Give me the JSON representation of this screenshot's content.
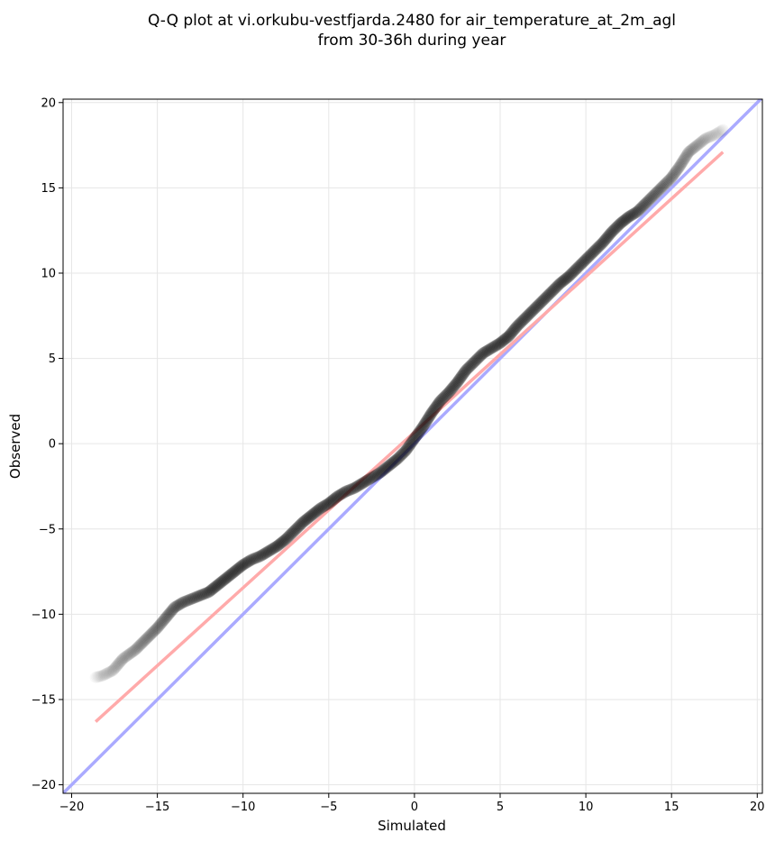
{
  "title_lines": [
    "Q-Q plot at vi.orkubu-vestfjarda.2480 for air_temperature_at_2m_agl",
    "from 30-36h during year"
  ],
  "chart_data": {
    "type": "scatter",
    "title": "Q-Q plot at vi.orkubu-vestfjarda.2480 for air_temperature_at_2m_agl from 30-36h during year",
    "xlabel": "Simulated",
    "ylabel": "Observed",
    "xlim": [
      -20.5,
      20.3
    ],
    "ylim": [
      -20.5,
      20.2
    ],
    "xticks": [
      -20,
      -15,
      -10,
      -5,
      0,
      5,
      10,
      15,
      20
    ],
    "yticks": [
      -20,
      -15,
      -10,
      -5,
      0,
      5,
      10,
      15,
      20
    ],
    "tick_labels": [
      "−20",
      "−15",
      "−10",
      "−5",
      "0",
      "5",
      "10",
      "15",
      "20"
    ],
    "grid": true,
    "identity_line": {
      "color": "#aaaaff",
      "from": [
        -20.5,
        -20.5
      ],
      "to": [
        20.3,
        20.3
      ]
    },
    "fit_line": {
      "color": "#ffaaaa",
      "from": [
        -18.6,
        -16.3
      ],
      "to": [
        18.0,
        17.1
      ]
    },
    "quantiles": {
      "x": [
        -18.6,
        -18.2,
        -17.6,
        -17.0,
        -16.3,
        -15.6,
        -15.0,
        -14.5,
        -14.0,
        -13.5,
        -13.0,
        -12.5,
        -12.0,
        -11.5,
        -11.0,
        -10.5,
        -10.0,
        -9.5,
        -9.0,
        -8.5,
        -8.0,
        -7.5,
        -7.0,
        -6.5,
        -6.0,
        -5.5,
        -5.0,
        -4.5,
        -4.0,
        -3.5,
        -3.0,
        -2.5,
        -2.0,
        -1.5,
        -1.0,
        -0.5,
        0.0,
        0.5,
        1.0,
        1.5,
        2.0,
        2.5,
        3.0,
        3.5,
        4.0,
        4.5,
        5.0,
        5.5,
        6.0,
        6.5,
        7.0,
        7.5,
        8.0,
        8.5,
        9.0,
        9.5,
        10.0,
        10.5,
        11.0,
        11.5,
        12.0,
        12.5,
        13.0,
        13.5,
        14.0,
        14.5,
        15.0,
        15.5,
        16.0,
        16.5,
        17.0,
        17.5,
        18.0
      ],
      "y": [
        -13.7,
        -13.6,
        -13.3,
        -12.6,
        -12.1,
        -11.4,
        -10.8,
        -10.2,
        -9.6,
        -9.3,
        -9.1,
        -8.9,
        -8.7,
        -8.3,
        -7.9,
        -7.5,
        -7.1,
        -6.8,
        -6.6,
        -6.3,
        -6.0,
        -5.6,
        -5.1,
        -4.6,
        -4.2,
        -3.8,
        -3.5,
        -3.1,
        -2.8,
        -2.6,
        -2.3,
        -2.0,
        -1.7,
        -1.3,
        -0.9,
        -0.4,
        0.3,
        1.0,
        1.8,
        2.5,
        3.0,
        3.6,
        4.3,
        4.8,
        5.3,
        5.6,
        5.9,
        6.3,
        6.9,
        7.4,
        7.9,
        8.4,
        8.9,
        9.4,
        9.8,
        10.3,
        10.8,
        11.3,
        11.8,
        12.4,
        12.9,
        13.3,
        13.6,
        14.1,
        14.6,
        15.1,
        15.6,
        16.3,
        17.1,
        17.5,
        17.9,
        18.1,
        18.4
      ]
    }
  }
}
